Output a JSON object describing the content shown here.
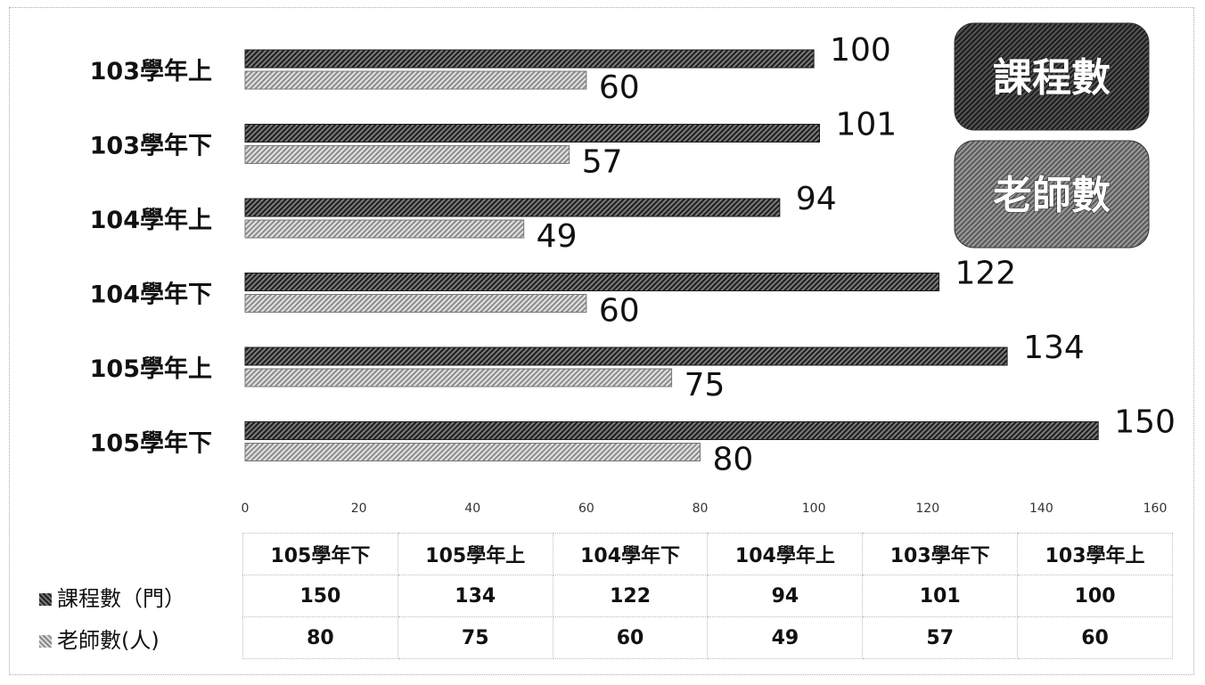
{
  "chart_data": {
    "type": "bar",
    "orientation": "horizontal",
    "categories": [
      "103學年上",
      "103學年下",
      "104學年上",
      "104學年下",
      "105學年上",
      "105學年下"
    ],
    "series": [
      {
        "name": "課程數",
        "values": [
          100,
          101,
          94,
          122,
          134,
          150
        ],
        "color": "#3a3a3a"
      },
      {
        "name": "老師數",
        "values": [
          60,
          57,
          49,
          60,
          75,
          80
        ],
        "color": "#b0b0b0"
      }
    ],
    "xlim": [
      0,
      160
    ],
    "xticks": [
      0,
      20,
      40,
      60,
      80,
      100,
      120,
      140,
      160
    ],
    "grid": false,
    "legend_boxes": [
      "課程數",
      "老師數"
    ],
    "legend_placement": "top-right"
  },
  "table": {
    "columns": [
      "105學年下",
      "105學年上",
      "104學年下",
      "104學年上",
      "103學年下",
      "103學年上"
    ],
    "rows": [
      {
        "label": "課程數（門）",
        "values": [
          "150",
          "134",
          "122",
          "94",
          "101",
          "100"
        ]
      },
      {
        "label": "老師數(人)",
        "values": [
          "80",
          "75",
          "60",
          "49",
          "57",
          "60"
        ]
      }
    ]
  }
}
